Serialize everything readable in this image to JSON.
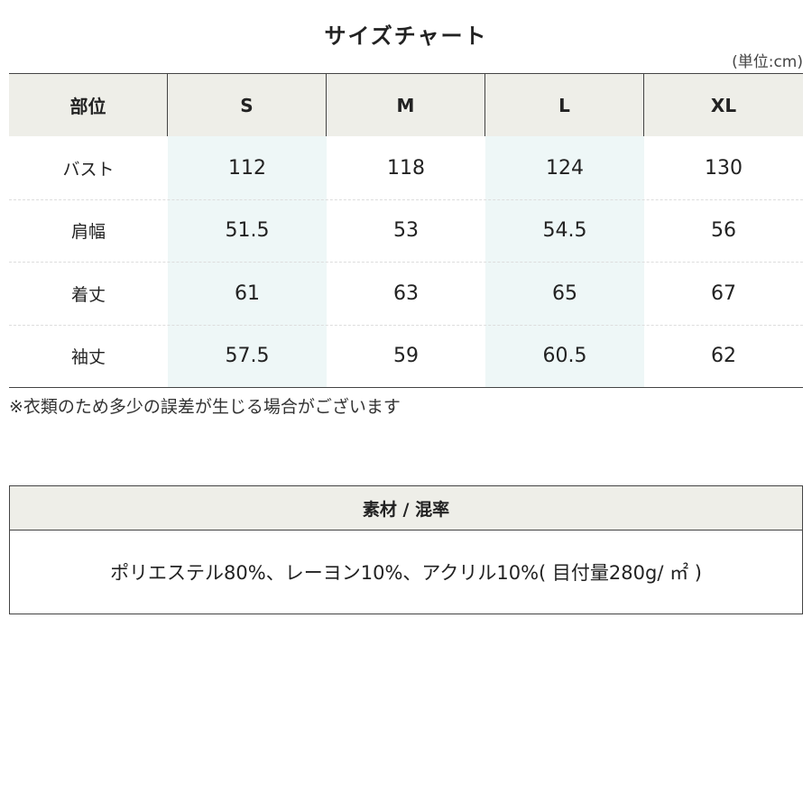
{
  "title": "サイズチャート",
  "unit": "(単位:cm)",
  "table": {
    "header": [
      "部位",
      "S",
      "M",
      "L",
      "XL"
    ],
    "rows": [
      [
        "バスト",
        "112",
        "118",
        "124",
        "130"
      ],
      [
        "肩幅",
        "51.5",
        "53",
        "54.5",
        "56"
      ],
      [
        "着丈",
        "61",
        "63",
        "65",
        "67"
      ],
      [
        "袖丈",
        "57.5",
        "59",
        "60.5",
        "62"
      ]
    ]
  },
  "note": "※衣類のため多少の誤差が生じる場合がございます",
  "material": {
    "title": "素材 / 混率",
    "text": "ポリエステル80%、レーヨン10%、アクリル10%( 目付量280g/ ㎡ )"
  }
}
